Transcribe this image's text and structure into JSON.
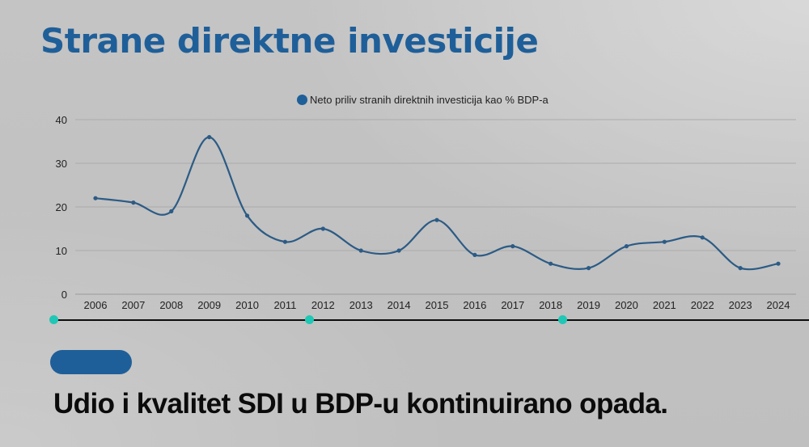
{
  "page": {
    "title": "Strane direktne investicije",
    "caption": "Udio i kvalitet  SDI u BDP-u kontinuirano opada.",
    "colors": {
      "accent": "#1f5f99",
      "line": "#2c5b85",
      "timeline_dot": "#20c7b5",
      "background": "#c2c2c2"
    }
  },
  "legend": {
    "label": "Neto priliv stranih direktnih investicija kao % BDP-a"
  },
  "chart_data": {
    "type": "line",
    "title": "",
    "xlabel": "",
    "ylabel": "",
    "smooth": true,
    "grid": true,
    "legend_position": "top",
    "ylim": [
      0,
      40
    ],
    "yticks": [
      0,
      10,
      20,
      30,
      40
    ],
    "categories": [
      "2006",
      "2007",
      "2008",
      "2009",
      "2010",
      "2011",
      "2012",
      "2013",
      "2014",
      "2015",
      "2016",
      "2017",
      "2018",
      "2019",
      "2020",
      "2021",
      "2022",
      "2023",
      "2024"
    ],
    "series": [
      {
        "name": "Neto priliv stranih direktnih investicija kao % BDP-a",
        "values": [
          22,
          21,
          19,
          36,
          18,
          12,
          15,
          10,
          10,
          17,
          9,
          11,
          7,
          6,
          11,
          12,
          13,
          6,
          7
        ]
      }
    ]
  }
}
